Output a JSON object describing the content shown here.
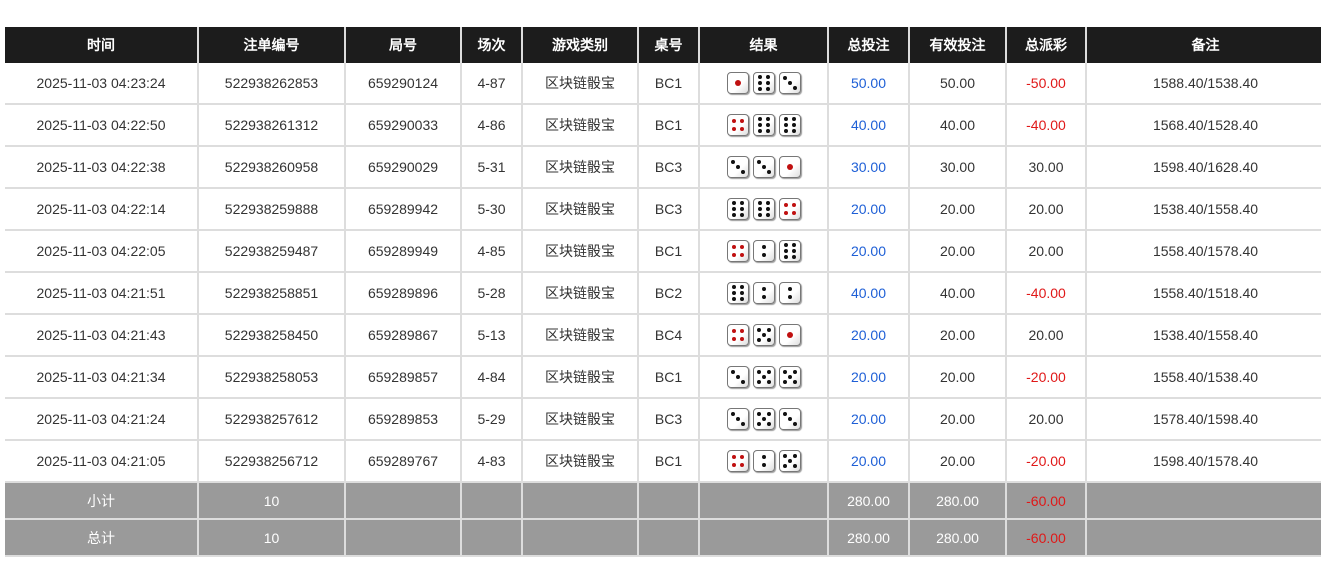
{
  "headers": [
    "时间",
    "注单编号",
    "局号",
    "场次",
    "游戏类别",
    "桌号",
    "结果",
    "总投注",
    "有效投注",
    "总派彩",
    "备注"
  ],
  "rows": [
    {
      "time": "2025-11-03 04:23:24",
      "order": "522938262853",
      "round": "659290124",
      "session": "4-87",
      "game": "区块链骰宝",
      "table": "BC1",
      "dice": [
        1,
        6,
        3
      ],
      "bet": "50.00",
      "valid": "50.00",
      "payout": "-50.00",
      "note": "1588.40/1538.40"
    },
    {
      "time": "2025-11-03 04:22:50",
      "order": "522938261312",
      "round": "659290033",
      "session": "4-86",
      "game": "区块链骰宝",
      "table": "BC1",
      "dice": [
        4,
        6,
        6
      ],
      "bet": "40.00",
      "valid": "40.00",
      "payout": "-40.00",
      "note": "1568.40/1528.40"
    },
    {
      "time": "2025-11-03 04:22:38",
      "order": "522938260958",
      "round": "659290029",
      "session": "5-31",
      "game": "区块链骰宝",
      "table": "BC3",
      "dice": [
        3,
        3,
        1
      ],
      "bet": "30.00",
      "valid": "30.00",
      "payout": "30.00",
      "note": "1598.40/1628.40"
    },
    {
      "time": "2025-11-03 04:22:14",
      "order": "522938259888",
      "round": "659289942",
      "session": "5-30",
      "game": "区块链骰宝",
      "table": "BC3",
      "dice": [
        6,
        6,
        4
      ],
      "bet": "20.00",
      "valid": "20.00",
      "payout": "20.00",
      "note": "1538.40/1558.40"
    },
    {
      "time": "2025-11-03 04:22:05",
      "order": "522938259487",
      "round": "659289949",
      "session": "4-85",
      "game": "区块链骰宝",
      "table": "BC1",
      "dice": [
        4,
        2,
        6
      ],
      "bet": "20.00",
      "valid": "20.00",
      "payout": "20.00",
      "note": "1558.40/1578.40"
    },
    {
      "time": "2025-11-03 04:21:51",
      "order": "522938258851",
      "round": "659289896",
      "session": "5-28",
      "game": "区块链骰宝",
      "table": "BC2",
      "dice": [
        6,
        2,
        2
      ],
      "bet": "40.00",
      "valid": "40.00",
      "payout": "-40.00",
      "note": "1558.40/1518.40"
    },
    {
      "time": "2025-11-03 04:21:43",
      "order": "522938258450",
      "round": "659289867",
      "session": "5-13",
      "game": "区块链骰宝",
      "table": "BC4",
      "dice": [
        4,
        5,
        1
      ],
      "bet": "20.00",
      "valid": "20.00",
      "payout": "20.00",
      "note": "1538.40/1558.40"
    },
    {
      "time": "2025-11-03 04:21:34",
      "order": "522938258053",
      "round": "659289857",
      "session": "4-84",
      "game": "区块链骰宝",
      "table": "BC1",
      "dice": [
        3,
        5,
        5
      ],
      "bet": "20.00",
      "valid": "20.00",
      "payout": "-20.00",
      "note": "1558.40/1538.40"
    },
    {
      "time": "2025-11-03 04:21:24",
      "order": "522938257612",
      "round": "659289853",
      "session": "5-29",
      "game": "区块链骰宝",
      "table": "BC3",
      "dice": [
        3,
        5,
        3
      ],
      "bet": "20.00",
      "valid": "20.00",
      "payout": "20.00",
      "note": "1578.40/1598.40"
    },
    {
      "time": "2025-11-03 04:21:05",
      "order": "522938256712",
      "round": "659289767",
      "session": "4-83",
      "game": "区块链骰宝",
      "table": "BC1",
      "dice": [
        4,
        2,
        5
      ],
      "bet": "20.00",
      "valid": "20.00",
      "payout": "-20.00",
      "note": "1598.40/1578.40"
    }
  ],
  "subtotal": {
    "label": "小计",
    "count": "10",
    "bet": "280.00",
    "valid": "280.00",
    "payout": "-60.00"
  },
  "total": {
    "label": "总计",
    "count": "10",
    "bet": "280.00",
    "valid": "280.00",
    "payout": "-60.00"
  },
  "colors": {
    "header_bg": "#1c1c1c",
    "bet_blue": "#1e5fd6",
    "negative_red": "#e01818",
    "summary_bg": "#9a9a9a"
  }
}
